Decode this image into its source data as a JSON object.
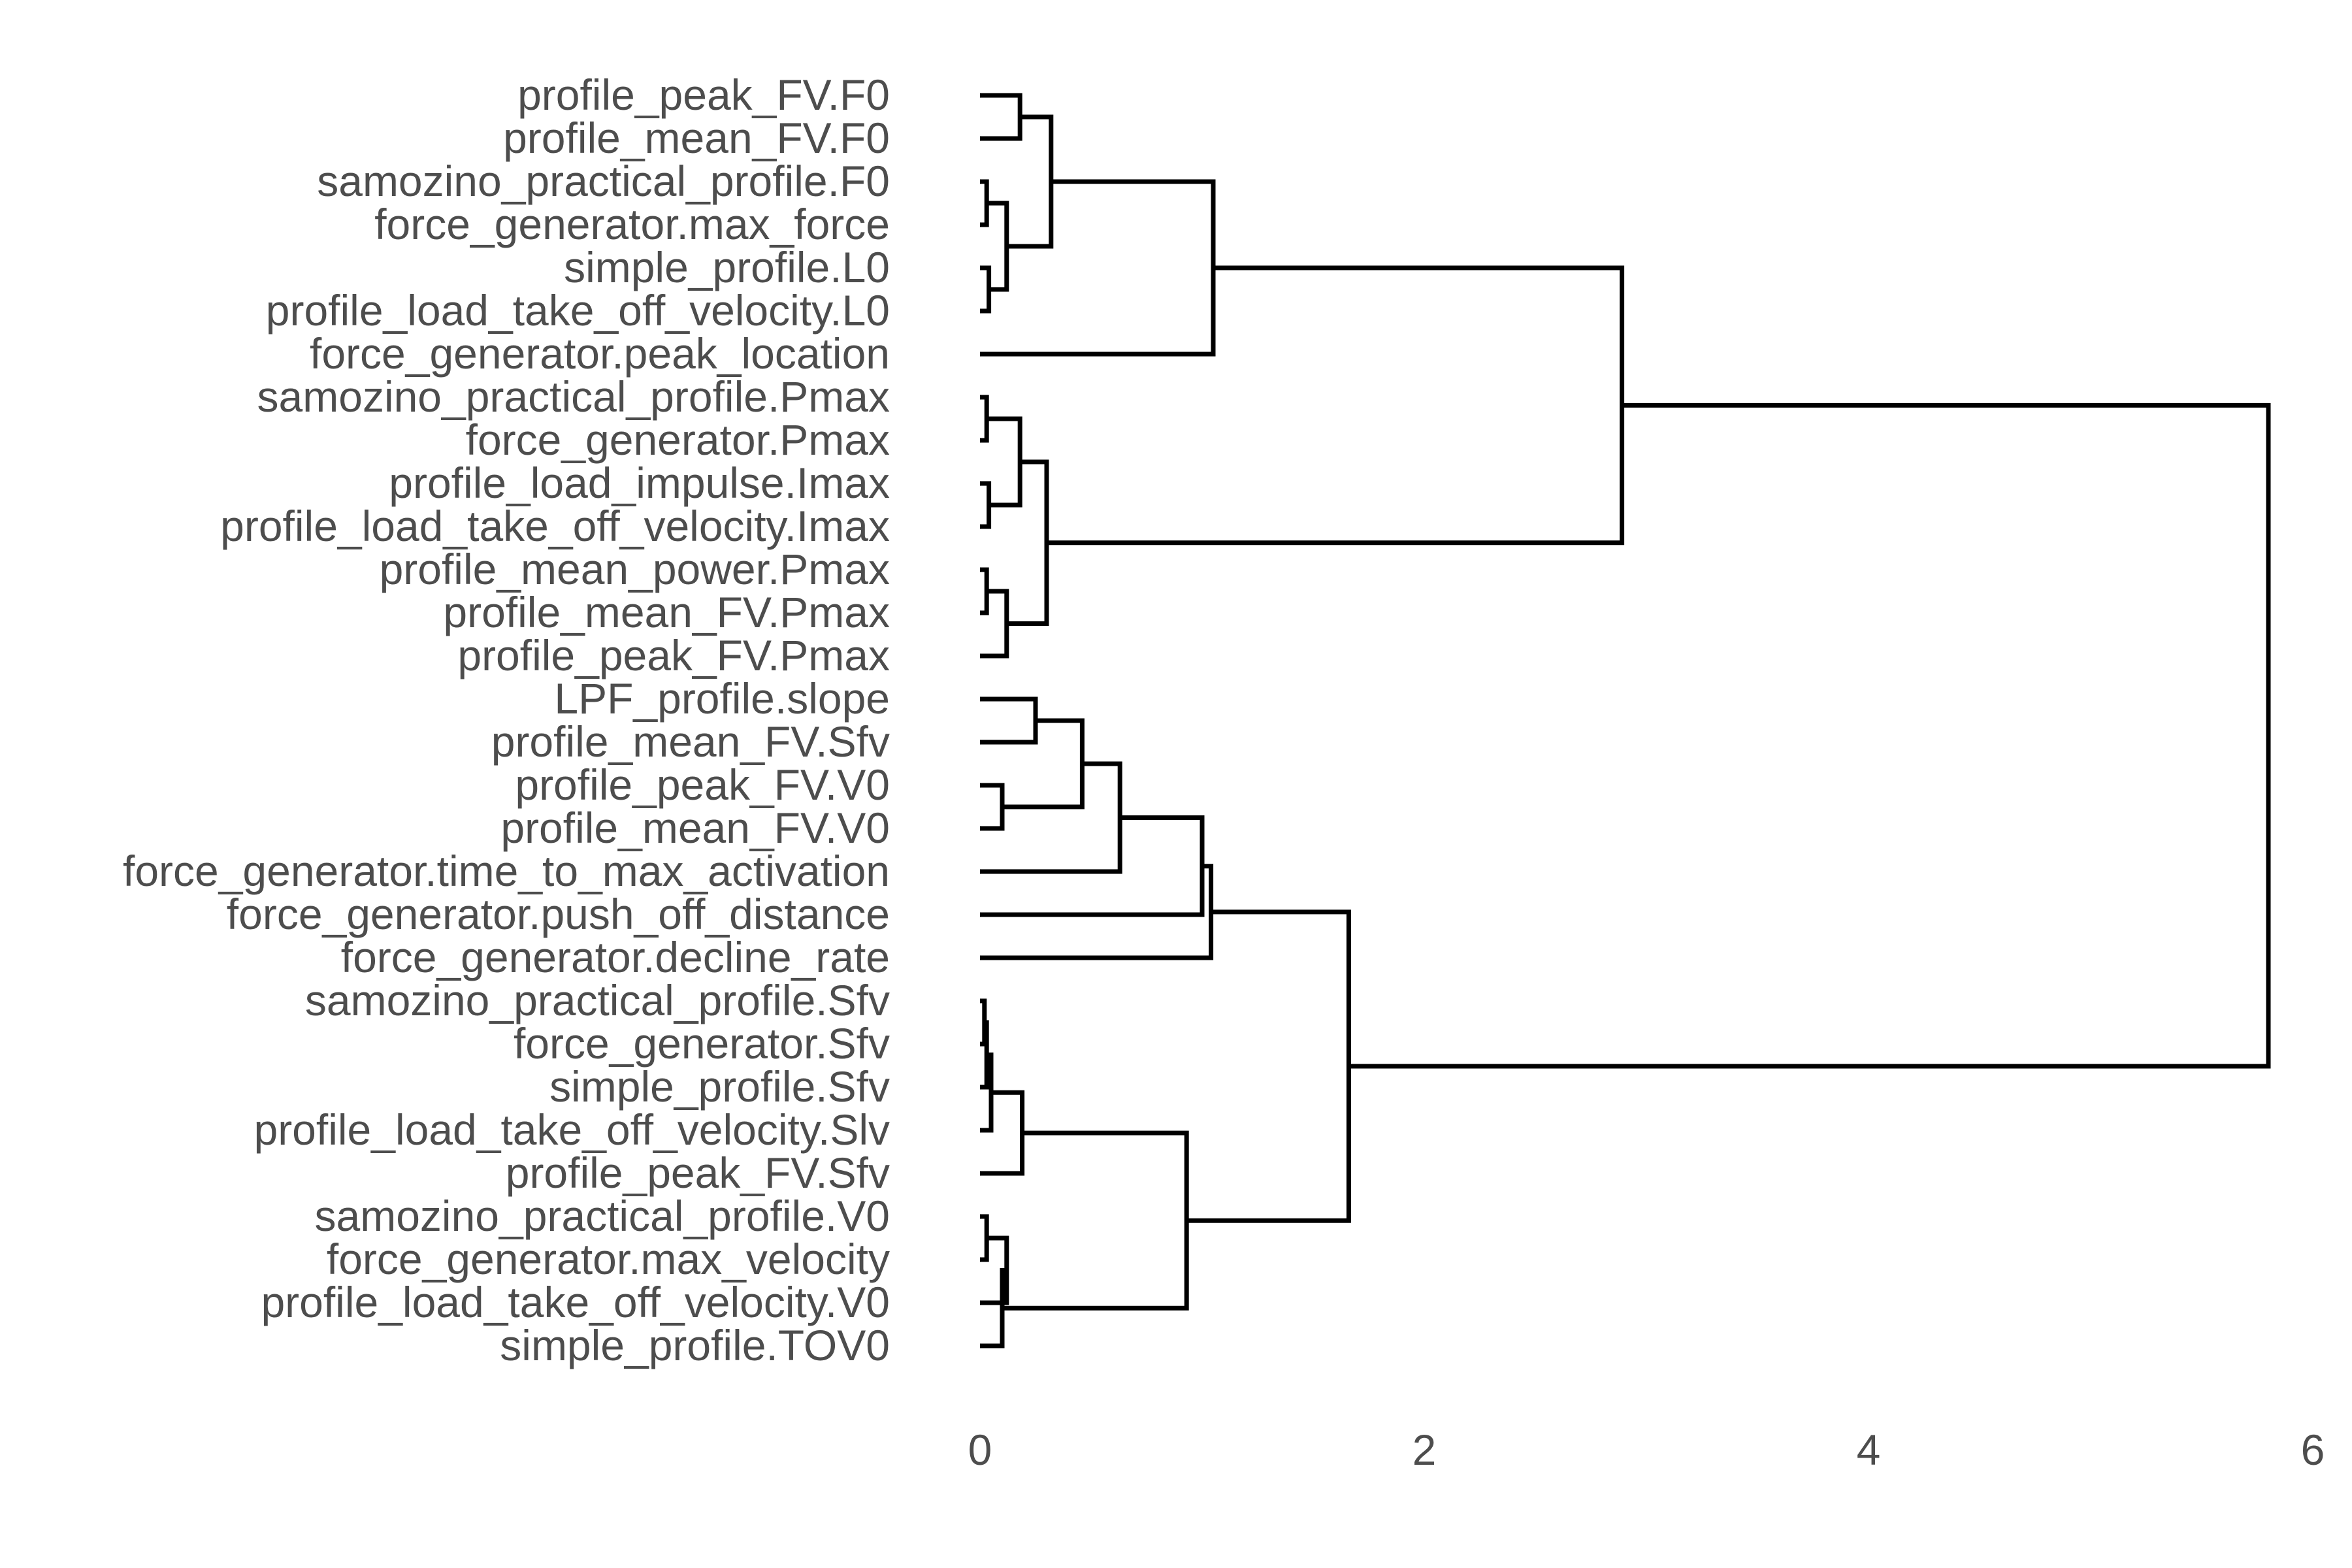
{
  "chart_data": {
    "type": "dendrogram",
    "orientation": "horizontal",
    "xlim": [
      0,
      6
    ],
    "x_ticks": [
      0,
      2,
      4,
      6
    ],
    "x_tick_labels": [
      "0",
      "2",
      "4",
      "6"
    ],
    "grid": false,
    "leaves": [
      "profile_peak_FV.F0",
      "profile_mean_FV.F0",
      "samozino_practical_profile.F0",
      "force_generator.max_force",
      "simple_profile.L0",
      "profile_load_take_off_velocity.L0",
      "force_generator.peak_location",
      "samozino_practical_profile.Pmax",
      "force_generator.Pmax",
      "profile_load_impulse.Imax",
      "profile_load_take_off_velocity.Imax",
      "profile_mean_power.Pmax",
      "profile_mean_FV.Pmax",
      "profile_peak_FV.Pmax",
      "LPF_profile.slope",
      "profile_mean_FV.Sfv",
      "profile_peak_FV.V0",
      "profile_mean_FV.V0",
      "force_generator.time_to_max_activation",
      "force_generator.push_off_distance",
      "force_generator.decline_rate",
      "samozino_practical_profile.Sfv",
      "force_generator.Sfv",
      "simple_profile.Sfv",
      "profile_load_take_off_velocity.Slv",
      "profile_peak_FV.Sfv",
      "samozino_practical_profile.V0",
      "force_generator.max_velocity",
      "profile_load_take_off_velocity.V0",
      "simple_profile.TOV0"
    ],
    "merges": [
      {
        "a": 0,
        "b": 1,
        "height": 0.18
      },
      {
        "a": 2,
        "b": 3,
        "height": 0.03
      },
      {
        "a": 4,
        "b": 5,
        "height": 0.04
      },
      {
        "a": -2,
        "b": -3,
        "height": 0.12
      },
      {
        "a": -1,
        "b": -4,
        "height": 0.32
      },
      {
        "a": -5,
        "b": 6,
        "height": 1.05
      },
      {
        "a": 7,
        "b": 8,
        "height": 0.03
      },
      {
        "a": 9,
        "b": 10,
        "height": 0.04
      },
      {
        "a": -7,
        "b": -8,
        "height": 0.18
      },
      {
        "a": 11,
        "b": 12,
        "height": 0.03
      },
      {
        "a": -10,
        "b": 13,
        "height": 0.12
      },
      {
        "a": -9,
        "b": -11,
        "height": 0.3
      },
      {
        "a": -6,
        "b": -12,
        "height": 2.89
      },
      {
        "a": 14,
        "b": 15,
        "height": 0.25
      },
      {
        "a": 16,
        "b": 17,
        "height": 0.1
      },
      {
        "a": -14,
        "b": -15,
        "height": 0.46
      },
      {
        "a": -16,
        "b": 18,
        "height": 0.63
      },
      {
        "a": -17,
        "b": 19,
        "height": 1.0
      },
      {
        "a": -18,
        "b": 20,
        "height": 1.04
      },
      {
        "a": 21,
        "b": 22,
        "height": 0.02
      },
      {
        "a": 23,
        "b": -20,
        "height": 0.03
      },
      {
        "a": 24,
        "b": -21,
        "height": 0.05
      },
      {
        "a": -22,
        "b": 25,
        "height": 0.19
      },
      {
        "a": 26,
        "b": 27,
        "height": 0.03
      },
      {
        "a": -24,
        "b": 28,
        "height": 0.12
      },
      {
        "a": -25,
        "b": 29,
        "height": 0.1
      },
      {
        "a": -23,
        "b": -26,
        "height": 0.93
      },
      {
        "a": -19,
        "b": -27,
        "height": 1.66
      },
      {
        "a": -13,
        "b": -28,
        "height": 5.8
      }
    ]
  }
}
